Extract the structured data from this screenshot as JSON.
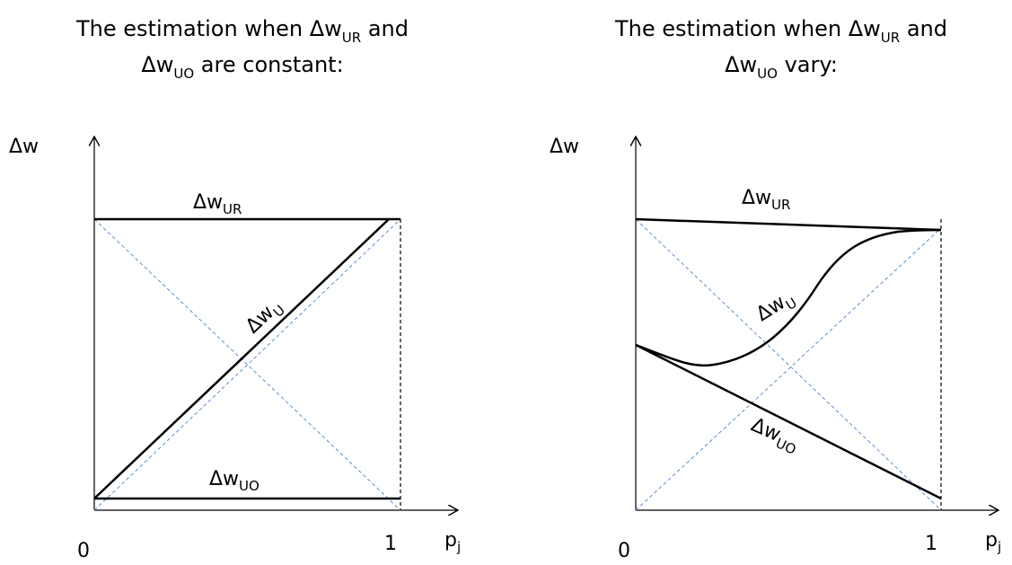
{
  "panels": [
    {
      "title_line1": "The estimation when Δw",
      "title_sub1": "UR",
      "title_and": " and",
      "title_line2": "Δw",
      "title_sub2": "UO",
      "title_tail": " are constant:",
      "y_axis_label": "Δw",
      "x_axis_label": "p",
      "x_axis_label_sub": "j",
      "x_tick_0": "0",
      "x_tick_1": "1",
      "curves": [
        {
          "name": "Δw",
          "sub": "UR"
        },
        {
          "name": "Δw",
          "sub": "U"
        },
        {
          "name": "Δw",
          "sub": "UO"
        }
      ]
    },
    {
      "title_line1": "The estimation when Δw",
      "title_sub1": "UR",
      "title_and": " and",
      "title_line2": "Δw",
      "title_sub2": "UO",
      "title_tail": " vary:",
      "y_axis_label": "Δw",
      "x_axis_label": "p",
      "x_axis_label_sub": "j",
      "x_tick_0": "0",
      "x_tick_1": "1",
      "curves": [
        {
          "name": "Δw",
          "sub": "UR"
        },
        {
          "name": "Δw",
          "sub": "U"
        },
        {
          "name": "Δw",
          "sub": "UO"
        }
      ]
    }
  ],
  "colors": {
    "curve": "#000000",
    "guide": "#5b8fd0",
    "axis": "#000000"
  }
}
